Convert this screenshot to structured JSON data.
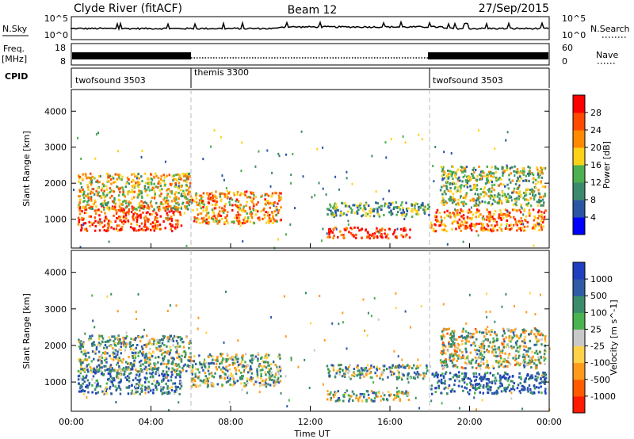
{
  "header": {
    "radar": "Clyde River (fitACF)",
    "beam": "Beam 12",
    "date": "27/Sep/2015"
  },
  "noise_panel": {
    "left_label": "N.Sky",
    "right_label": "N.Search",
    "left_ticks": [
      "10^5",
      "10^0"
    ],
    "right_ticks": [
      "10^5",
      "10^0"
    ],
    "series": "N.Sky noise level"
  },
  "freq_panel": {
    "left_label_top": "Freq.",
    "left_label_bottom": "[MHz]",
    "right_label": "Nave",
    "left_ticks": [
      "18",
      "8"
    ],
    "right_ticks": [
      "60",
      "0"
    ]
  },
  "cpid": {
    "label": "CPID",
    "segments": [
      {
        "name": "twofsound 3503",
        "start_h": 0
      },
      {
        "name": "themis 3300",
        "start_h": 6
      },
      {
        "name": "twofsound 3503",
        "start_h": 18
      }
    ]
  },
  "power_panel": {
    "ylabel": "Slant Range [km]",
    "yticks": [
      "4000",
      "3000",
      "2000",
      "1000"
    ],
    "colorbar_label": "Power [dB]",
    "colorbar_ticks": [
      "28",
      "24",
      "20",
      "16",
      "12",
      "8",
      "4"
    ],
    "colors": [
      "#0000ff",
      "#2a55a5",
      "#3c8a6e",
      "#4caf50",
      "#ffd21a",
      "#ff8a00",
      "#ff4a00",
      "#ff0000"
    ]
  },
  "velocity_panel": {
    "ylabel": "Slant Range [km]",
    "yticks": [
      "4000",
      "3000",
      "2000",
      "1000"
    ],
    "colorbar_label": "Velocity [m s^-1]",
    "colorbar_ticks": [
      "1000",
      "500",
      "100",
      "25",
      "-25",
      "-100",
      "-500",
      "-1000"
    ],
    "colors": [
      "#1f3fbf",
      "#2e5aa8",
      "#3a8c6a",
      "#49b34f",
      "#c9c9c9",
      "#ffd24a",
      "#ff9a1a",
      "#ff5a00",
      "#ff1a00"
    ]
  },
  "xaxis": {
    "label": "Time UT",
    "ticks": [
      "00:00",
      "04:00",
      "08:00",
      "12:00",
      "16:00",
      "20:00",
      "00:00"
    ]
  },
  "chart_data": {
    "type": "heatmap",
    "title": "Clyde River (fitACF) Beam 12 27/Sep/2015",
    "xlabel": "Time UT",
    "ylabel": "Slant Range [km]",
    "xlim_hours": [
      0,
      24
    ],
    "ylim_km": [
      200,
      4600
    ],
    "program_changes_h": [
      6,
      18
    ],
    "power_db_range": [
      0,
      30
    ],
    "velocity_range": [
      -1000,
      1000
    ],
    "scatter_regions": [
      {
        "t_start": 0.3,
        "t_end": 5.5,
        "range_low": 700,
        "range_high": 1400,
        "power_db": 27,
        "velocity": 300
      },
      {
        "t_start": 0.3,
        "t_end": 6.0,
        "range_low": 1300,
        "range_high": 2300,
        "power_db": 18,
        "velocity": 150
      },
      {
        "t_start": 6.0,
        "t_end": 10.5,
        "range_low": 900,
        "range_high": 1800,
        "power_db": 22,
        "velocity": 100
      },
      {
        "t_start": 12.8,
        "t_end": 17.0,
        "range_low": 500,
        "range_high": 800,
        "power_db": 28,
        "velocity": 80
      },
      {
        "t_start": 12.8,
        "t_end": 18.0,
        "range_low": 1100,
        "range_high": 1500,
        "power_db": 12,
        "velocity": 120
      },
      {
        "t_start": 18.0,
        "t_end": 23.8,
        "range_low": 700,
        "range_high": 1300,
        "power_db": 24,
        "velocity": 400
      },
      {
        "t_start": 18.5,
        "t_end": 23.8,
        "range_low": 1400,
        "range_high": 2500,
        "power_db": 15,
        "velocity": 10
      }
    ]
  }
}
